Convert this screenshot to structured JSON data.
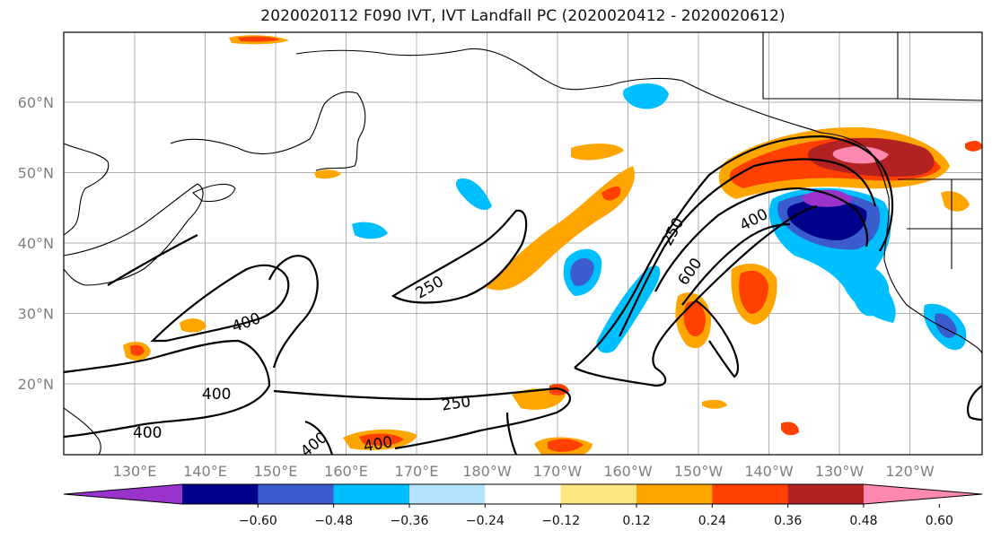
{
  "title": "2020020112 F090 IVT, IVT Landfall PC (2020020412 - 2020020612)",
  "map": {
    "lon_labels": [
      "130°E",
      "140°E",
      "150°E",
      "160°E",
      "170°E",
      "180°W",
      "170°W",
      "160°W",
      "150°W",
      "140°W",
      "130°W",
      "120°W"
    ],
    "lat_labels": [
      "60°N",
      "50°N",
      "40°N",
      "30°N",
      "20°N"
    ],
    "contour_labels": [
      "250",
      "400",
      "600",
      "400",
      "250",
      "400",
      "400",
      "250",
      "400",
      "400"
    ],
    "colors": {
      "neg_60": "#9933cc",
      "neg_48": "#00008b",
      "neg_36": "#3a5ccc",
      "neg_24": "#00bfff",
      "neg_12": "#b3e3ff",
      "neutral": "#ffffff",
      "pos_12": "#ffe680",
      "pos_24": "#ffa500",
      "pos_36": "#ff4000",
      "pos_48": "#b22222",
      "pos_60": "#ff88b0"
    }
  },
  "colorbar": {
    "labels": [
      "−0.60",
      "−0.48",
      "−0.36",
      "−0.24",
      "−0.12",
      "0.12",
      "0.24",
      "0.36",
      "0.48",
      "0.60"
    ],
    "colors": [
      "#9933cc",
      "#00008b",
      "#3a5ccc",
      "#00bfff",
      "#b3e3ff",
      "#ffffff",
      "#ffe680",
      "#ffa500",
      "#ff4000",
      "#b22222",
      "#ff88b0"
    ]
  }
}
